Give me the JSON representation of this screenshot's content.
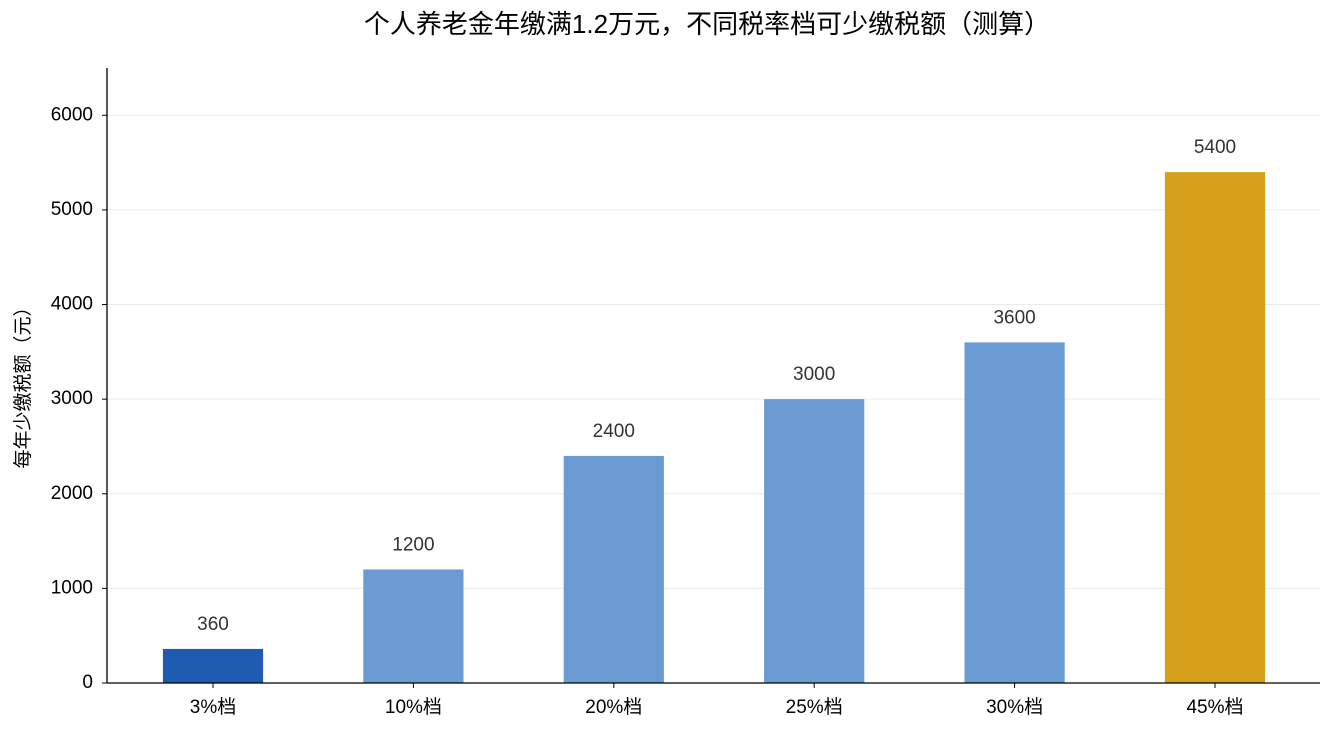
{
  "chart_data": {
    "type": "bar",
    "title": "个人养老金年缴满1.2万元，不同税率档可少缴税额（测算）",
    "y_label": "每年少缴税额（元）",
    "categories": [
      "3%档",
      "10%档",
      "20%档",
      "25%档",
      "30%档",
      "45%档"
    ],
    "values": [
      360,
      1200,
      2400,
      3000,
      3600,
      5400
    ],
    "colors": [
      "#1f5bb0",
      "#6b9bd3",
      "#6b9bd3",
      "#6b9bd3",
      "#6b9bd3",
      "#d4a01c"
    ],
    "ylim": [
      0,
      6500
    ],
    "yticks": [
      0,
      1000,
      2000,
      3000,
      4000,
      5000,
      6000
    ],
    "grid": true
  }
}
